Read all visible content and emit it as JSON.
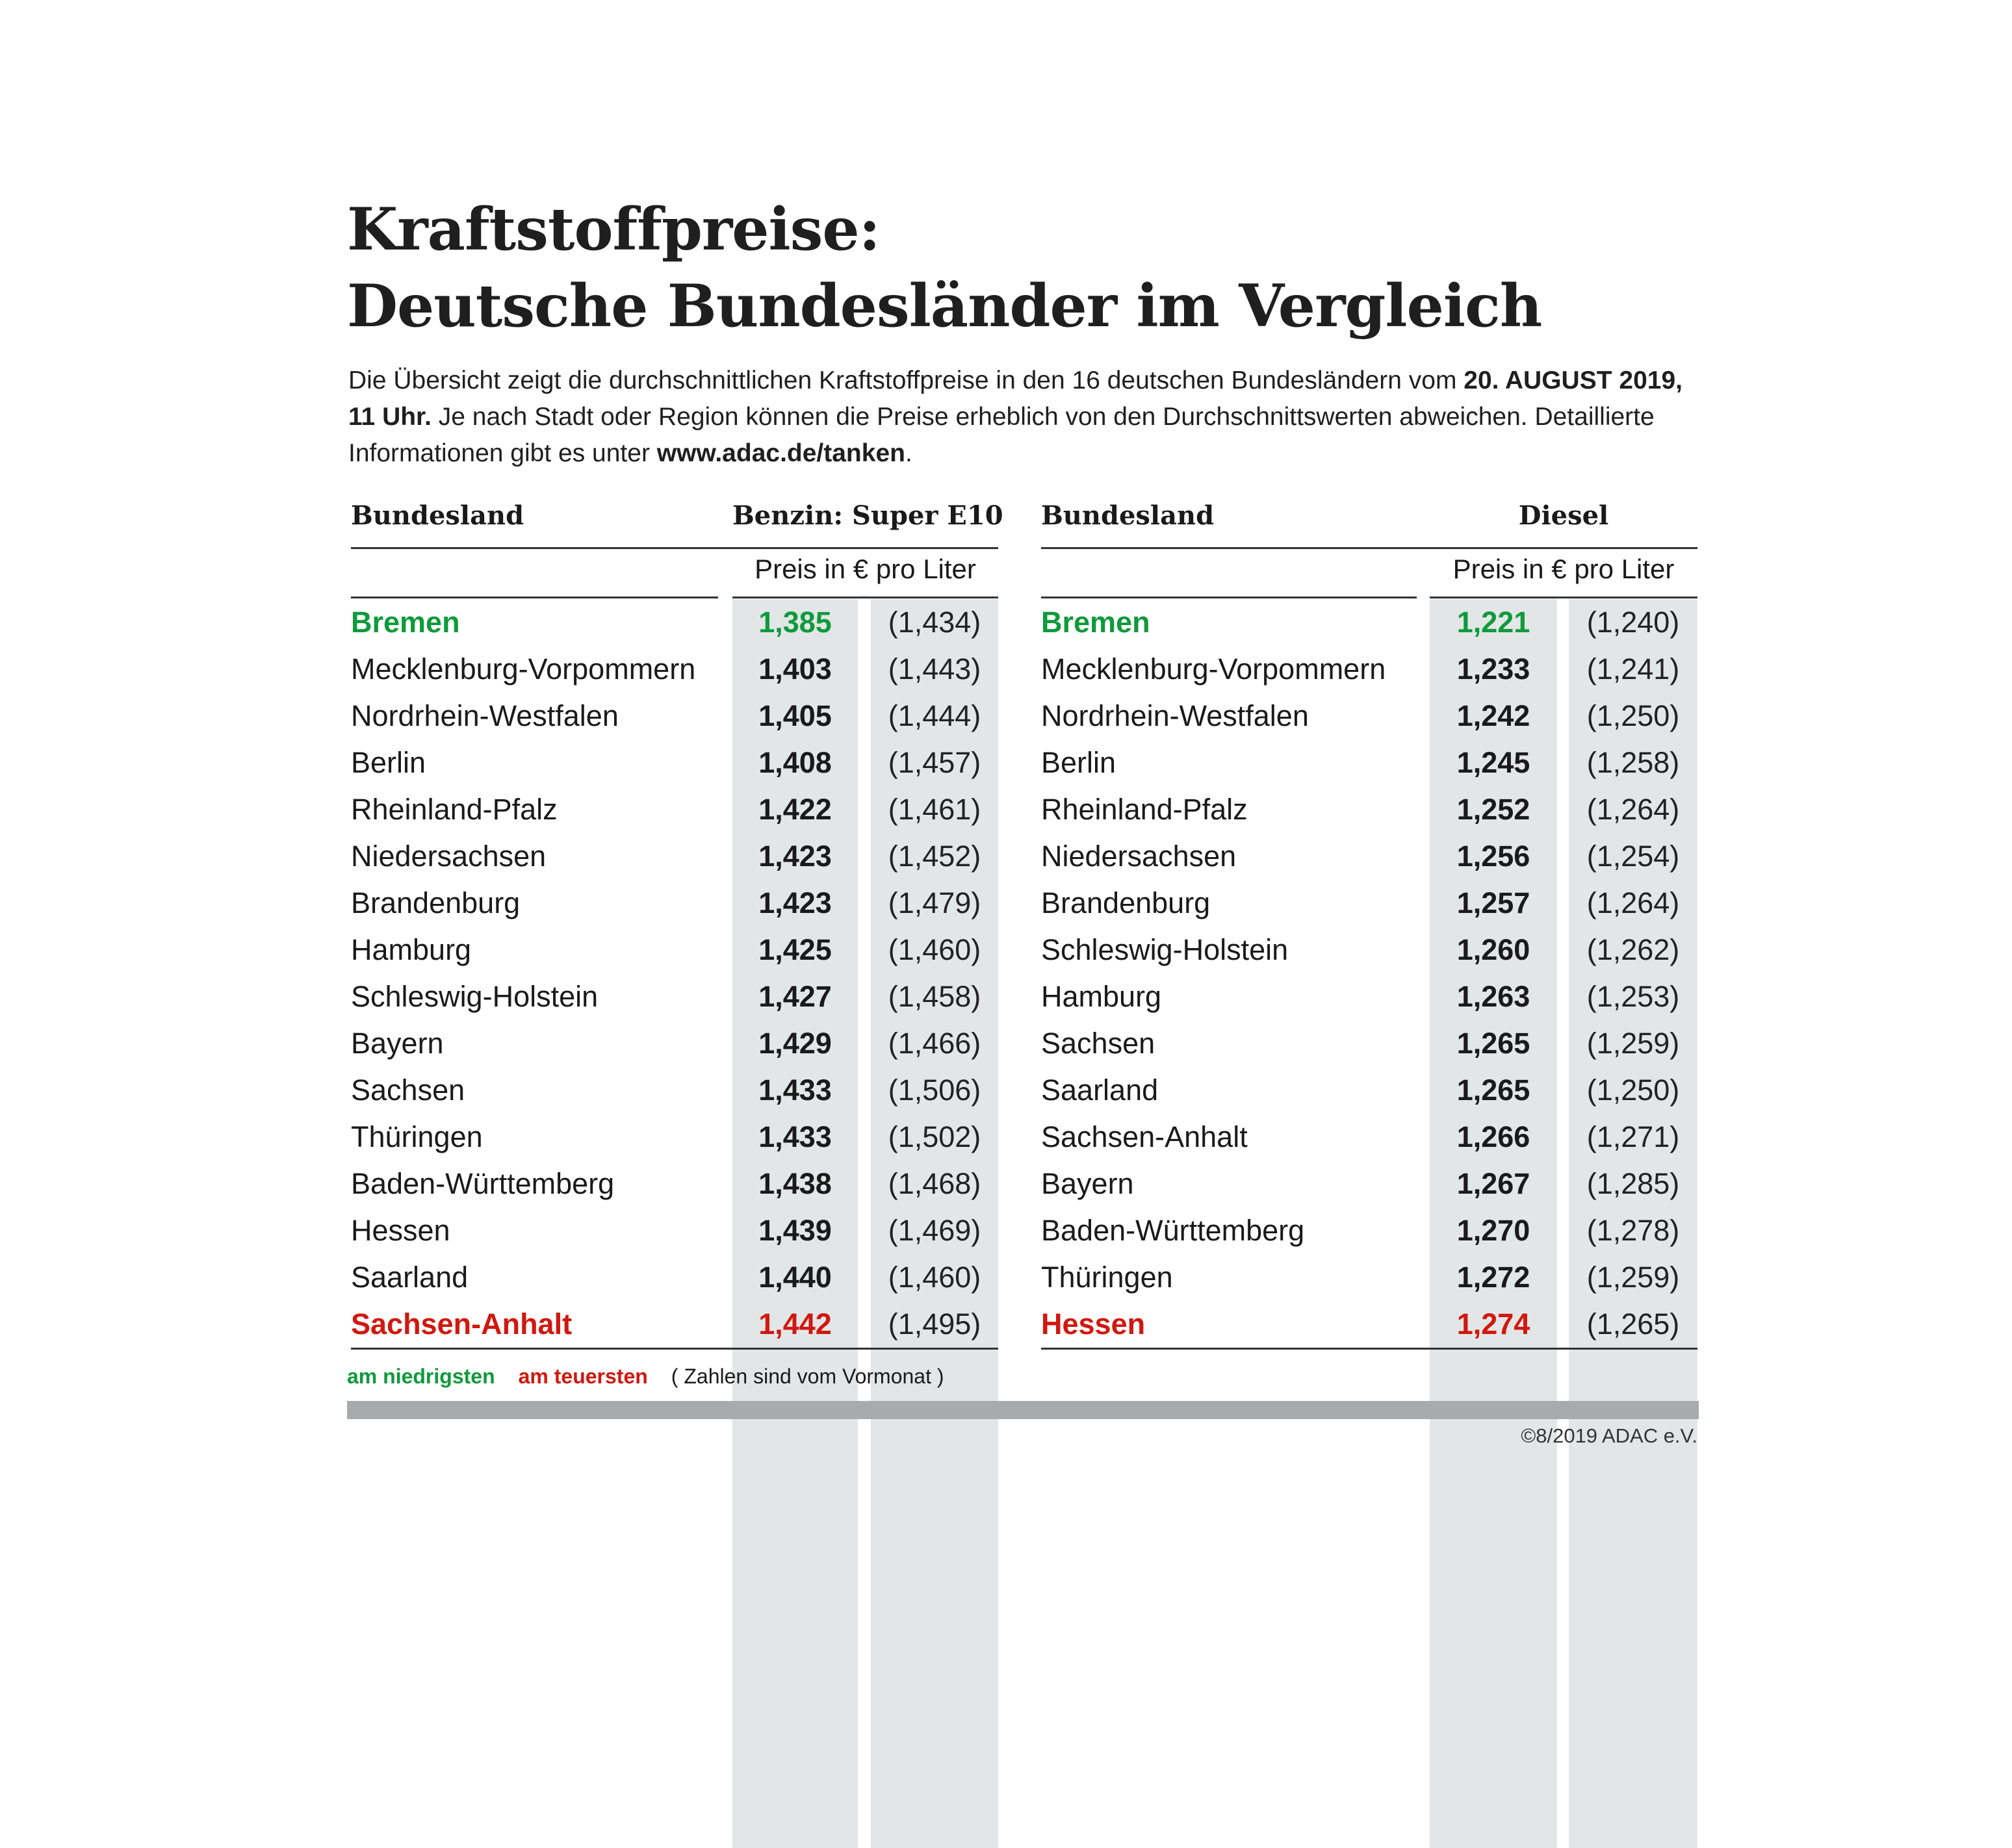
{
  "title": {
    "line1": "Kraftstoffpreise:",
    "line2": "Deutsche Bundesländer im Vergleich"
  },
  "intro": {
    "part1": "Die Übersicht zeigt die durchschnittlichen Kraftstoffpreise in den 16 deutschen Bundesländern vom ",
    "date_bold": "20. AUGUST 2019, 11 Uhr.",
    "part2": " Je nach Stadt oder Region können die Preise erheblich von den Durchschnittswerten abweichen. Detaillierte Informationen gibt es unter ",
    "link": "www.adac.de/tanken",
    "part3": "."
  },
  "colors": {
    "lowest": "#0f9a3c",
    "highest": "#d0180f",
    "column_shade": "#e3e6e7",
    "bar": "#a7abad"
  },
  "tables": [
    {
      "header_state": "Bundesland",
      "header_fuel": "Benzin:  Super E10",
      "unit": "Preis in € pro Liter",
      "rows": [
        {
          "state": "Bremen",
          "price": "1,385",
          "prev": "(1,434)",
          "mark": "lowest"
        },
        {
          "state": "Mecklenburg-Vorpommern",
          "price": "1,403",
          "prev": "(1,443)"
        },
        {
          "state": "Nordrhein-Westfalen",
          "price": "1,405",
          "prev": "(1,444)"
        },
        {
          "state": "Berlin",
          "price": "1,408",
          "prev": "(1,457)"
        },
        {
          "state": "Rheinland-Pfalz",
          "price": "1,422",
          "prev": "(1,461)"
        },
        {
          "state": "Niedersachsen",
          "price": "1,423",
          "prev": "(1,452)"
        },
        {
          "state": "Brandenburg",
          "price": "1,423",
          "prev": "(1,479)"
        },
        {
          "state": "Hamburg",
          "price": "1,425",
          "prev": "(1,460)"
        },
        {
          "state": "Schleswig-Holstein",
          "price": "1,427",
          "prev": "(1,458)"
        },
        {
          "state": "Bayern",
          "price": "1,429",
          "prev": "(1,466)"
        },
        {
          "state": "Sachsen",
          "price": "1,433",
          "prev": "(1,506)"
        },
        {
          "state": "Thüringen",
          "price": "1,433",
          "prev": "(1,502)"
        },
        {
          "state": "Baden-Württemberg",
          "price": "1,438",
          "prev": "(1,468)"
        },
        {
          "state": "Hessen",
          "price": "1,439",
          "prev": "(1,469)"
        },
        {
          "state": "Saarland",
          "price": "1,440",
          "prev": "(1,460)"
        },
        {
          "state": "Sachsen-Anhalt",
          "price": "1,442",
          "prev": "(1,495)",
          "mark": "highest"
        }
      ]
    },
    {
      "header_state": "Bundesland",
      "header_fuel": "Diesel",
      "unit": "Preis in € pro Liter",
      "rows": [
        {
          "state": "Bremen",
          "price": "1,221",
          "prev": "(1,240)",
          "mark": "lowest"
        },
        {
          "state": "Mecklenburg-Vorpommern",
          "price": "1,233",
          "prev": "(1,241)"
        },
        {
          "state": "Nordrhein-Westfalen",
          "price": "1,242",
          "prev": "(1,250)"
        },
        {
          "state": "Berlin",
          "price": "1,245",
          "prev": "(1,258)"
        },
        {
          "state": "Rheinland-Pfalz",
          "price": "1,252",
          "prev": "(1,264)"
        },
        {
          "state": "Niedersachsen",
          "price": "1,256",
          "prev": "(1,254)"
        },
        {
          "state": "Brandenburg",
          "price": "1,257",
          "prev": "(1,264)"
        },
        {
          "state": "Schleswig-Holstein",
          "price": "1,260",
          "prev": "(1,262)"
        },
        {
          "state": "Hamburg",
          "price": "1,263",
          "prev": "(1,253)"
        },
        {
          "state": "Sachsen",
          "price": "1,265",
          "prev": "(1,259)"
        },
        {
          "state": "Saarland",
          "price": "1,265",
          "prev": "(1,250)"
        },
        {
          "state": "Sachsen-Anhalt",
          "price": "1,266",
          "prev": "(1,271)"
        },
        {
          "state": "Bayern",
          "price": "1,267",
          "prev": "(1,285)"
        },
        {
          "state": "Baden-Württemberg",
          "price": "1,270",
          "prev": "(1,278)"
        },
        {
          "state": "Thüringen",
          "price": "1,272",
          "prev": "(1,259)"
        },
        {
          "state": "Hessen",
          "price": "1,274",
          "prev": "(1,265)",
          "mark": "highest"
        }
      ]
    }
  ],
  "legend": {
    "lowest": "am niedrigsten",
    "highest": "am teuersten",
    "note": "( Zahlen sind vom Vormonat )"
  },
  "copyright": "©8/2019 ADAC e.V."
}
